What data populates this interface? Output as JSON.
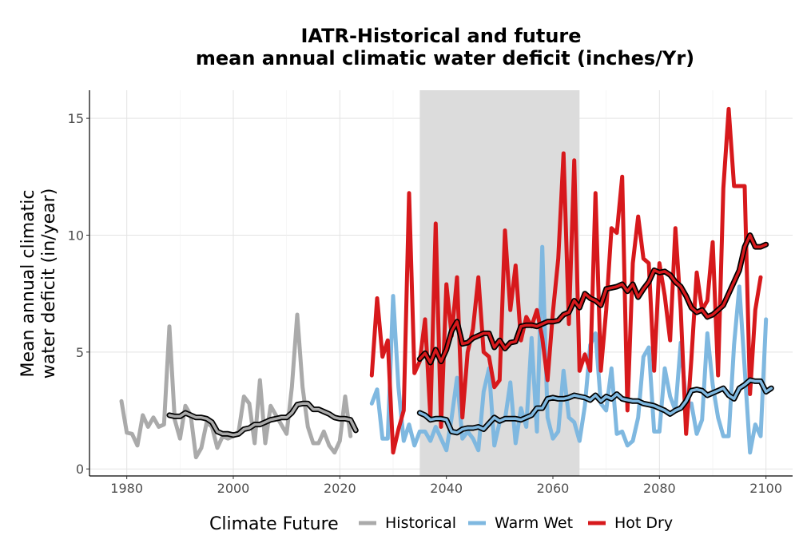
{
  "chart_data": {
    "type": "line",
    "title": "IATR-Historical and future",
    "subtitle": "mean annual climatic water deficit (inches/Yr)",
    "ylabel_line1": "Mean annual climatic",
    "ylabel_line2": "water deficit (in/year)",
    "xlabel": "",
    "xlim": [
      1973,
      2105
    ],
    "ylim": [
      -0.3,
      16.2
    ],
    "x_ticks": [
      1980,
      2000,
      2020,
      2040,
      2060,
      2080,
      2100
    ],
    "y_ticks": [
      0,
      5,
      10,
      15
    ],
    "grid": true,
    "shaded_period": [
      2035,
      2065
    ],
    "legend": {
      "title": "Climate Future",
      "position": "bottom",
      "entries": [
        "Historical",
        "Warm Wet",
        "Hot Dry"
      ]
    },
    "colors": {
      "Historical": "#aaaaaa",
      "Warm Wet": "#7fb8e0",
      "Hot Dry": "#d7191c",
      "smooth": "#000000",
      "shade": "#dcdcdc"
    },
    "series": [
      {
        "name": "Historical",
        "x_start": 1979,
        "values": [
          2.9,
          1.55,
          1.5,
          1.0,
          2.3,
          1.8,
          2.2,
          1.8,
          1.9,
          6.1,
          2.1,
          1.3,
          2.7,
          2.3,
          0.5,
          0.9,
          2.0,
          1.8,
          0.9,
          1.4,
          1.3,
          1.4,
          1.6,
          3.1,
          2.8,
          1.1,
          3.8,
          1.1,
          2.7,
          2.3,
          1.9,
          1.5,
          3.5,
          6.6,
          3.5,
          1.8,
          1.1,
          1.1,
          1.6,
          1.0,
          0.7,
          1.2,
          3.1,
          1.4
        ]
      },
      {
        "name": "Warm Wet",
        "x_start": 2026,
        "values": [
          2.8,
          3.4,
          1.3,
          1.3,
          7.4,
          3.5,
          1.2,
          1.9,
          1.0,
          1.6,
          1.6,
          1.2,
          1.8,
          1.3,
          0.8,
          2.2,
          3.9,
          1.3,
          1.6,
          1.3,
          0.8,
          3.3,
          4.3,
          1.0,
          2.0,
          2.1,
          3.7,
          1.1,
          2.6,
          1.8,
          5.6,
          1.6,
          9.5,
          2.2,
          1.3,
          1.6,
          4.2,
          2.2,
          2.0,
          1.2,
          2.7,
          5.3,
          5.8,
          2.8,
          2.5,
          4.3,
          1.5,
          1.6,
          1.0,
          1.2,
          2.2,
          4.8,
          5.2,
          1.6,
          1.6,
          4.3,
          3.1,
          2.5,
          5.4,
          2.8,
          2.8,
          1.5,
          2.1,
          5.8,
          3.6,
          2.2,
          1.4,
          1.4,
          5.3,
          7.8,
          4.3,
          0.7,
          1.9,
          1.4,
          6.4
        ]
      },
      {
        "name": "Hot Dry",
        "x_start": 2026,
        "values": [
          4.0,
          7.3,
          4.8,
          5.5,
          0.7,
          1.7,
          2.5,
          11.8,
          4.1,
          4.6,
          6.4,
          2.2,
          10.5,
          1.8,
          7.9,
          5.7,
          8.2,
          2.2,
          5.0,
          6.0,
          8.2,
          5.0,
          4.8,
          3.5,
          3.8,
          10.2,
          6.8,
          8.7,
          5.5,
          6.5,
          6.1,
          6.8,
          5.6,
          3.8,
          6.7,
          9.0,
          13.5,
          6.2,
          13.2,
          4.2,
          4.9,
          4.2,
          11.8,
          4.2,
          6.8,
          10.3,
          10.1,
          12.5,
          2.5,
          8.8,
          10.8,
          9.0,
          8.8,
          4.2,
          8.8,
          7.4,
          5.5,
          10.3,
          6.8,
          1.5,
          4.7,
          8.4,
          6.8,
          7.2,
          9.7,
          4.0,
          12.0,
          15.4,
          12.1,
          12.1,
          12.1,
          3.2,
          6.8,
          8.2
        ]
      },
      {
        "name": "Historical smooth",
        "x_start": 1988,
        "values": [
          2.3,
          2.25,
          2.25,
          2.4,
          2.3,
          2.2,
          2.2,
          2.15,
          2.0,
          1.6,
          1.5,
          1.5,
          1.45,
          1.5,
          1.7,
          1.75,
          1.9,
          1.9,
          2.0,
          2.1,
          2.15,
          2.2,
          2.2,
          2.4,
          2.75,
          2.8,
          2.8,
          2.55,
          2.55,
          2.45,
          2.35,
          2.2,
          2.15,
          2.15,
          2.1,
          1.65
        ]
      },
      {
        "name": "Warm Wet smooth",
        "x_start": 2035,
        "values": [
          2.4,
          2.3,
          2.1,
          2.15,
          2.15,
          2.1,
          1.6,
          1.55,
          1.7,
          1.75,
          1.75,
          1.8,
          1.7,
          1.95,
          2.2,
          2.05,
          2.15,
          2.15,
          2.15,
          2.1,
          2.2,
          2.3,
          2.6,
          2.6,
          3.0,
          3.05,
          3.0,
          3.0,
          3.05,
          3.15,
          3.1,
          3.05,
          2.95,
          3.15,
          2.9,
          3.1,
          3.0,
          3.2,
          3.0,
          2.95,
          2.9,
          2.9,
          2.8,
          2.75,
          2.7,
          2.6,
          2.5,
          2.35,
          2.5,
          2.6,
          2.9,
          3.35,
          3.4,
          3.35,
          3.15,
          3.25,
          3.35,
          3.45,
          3.15,
          3.0,
          3.45,
          3.6,
          3.8,
          3.75,
          3.75,
          3.3,
          3.45
        ]
      },
      {
        "name": "Hot Dry smooth",
        "x_start": 2035,
        "values": [
          4.7,
          4.95,
          4.55,
          5.1,
          4.6,
          5.1,
          5.9,
          6.3,
          5.35,
          5.4,
          5.6,
          5.7,
          5.8,
          5.8,
          5.2,
          5.5,
          5.15,
          5.4,
          5.45,
          6.1,
          6.15,
          6.15,
          6.1,
          6.2,
          6.3,
          6.3,
          6.35,
          6.6,
          6.7,
          7.2,
          6.9,
          7.5,
          7.3,
          7.2,
          7.0,
          7.7,
          7.75,
          7.8,
          7.9,
          7.6,
          7.9,
          7.35,
          7.7,
          8.0,
          8.5,
          8.4,
          8.45,
          8.3,
          8.0,
          7.8,
          7.4,
          6.9,
          6.7,
          6.8,
          6.5,
          6.6,
          6.8,
          7.0,
          7.5,
          8.0,
          8.5,
          9.5,
          10.0,
          9.5,
          9.5,
          9.6
        ]
      }
    ]
  }
}
